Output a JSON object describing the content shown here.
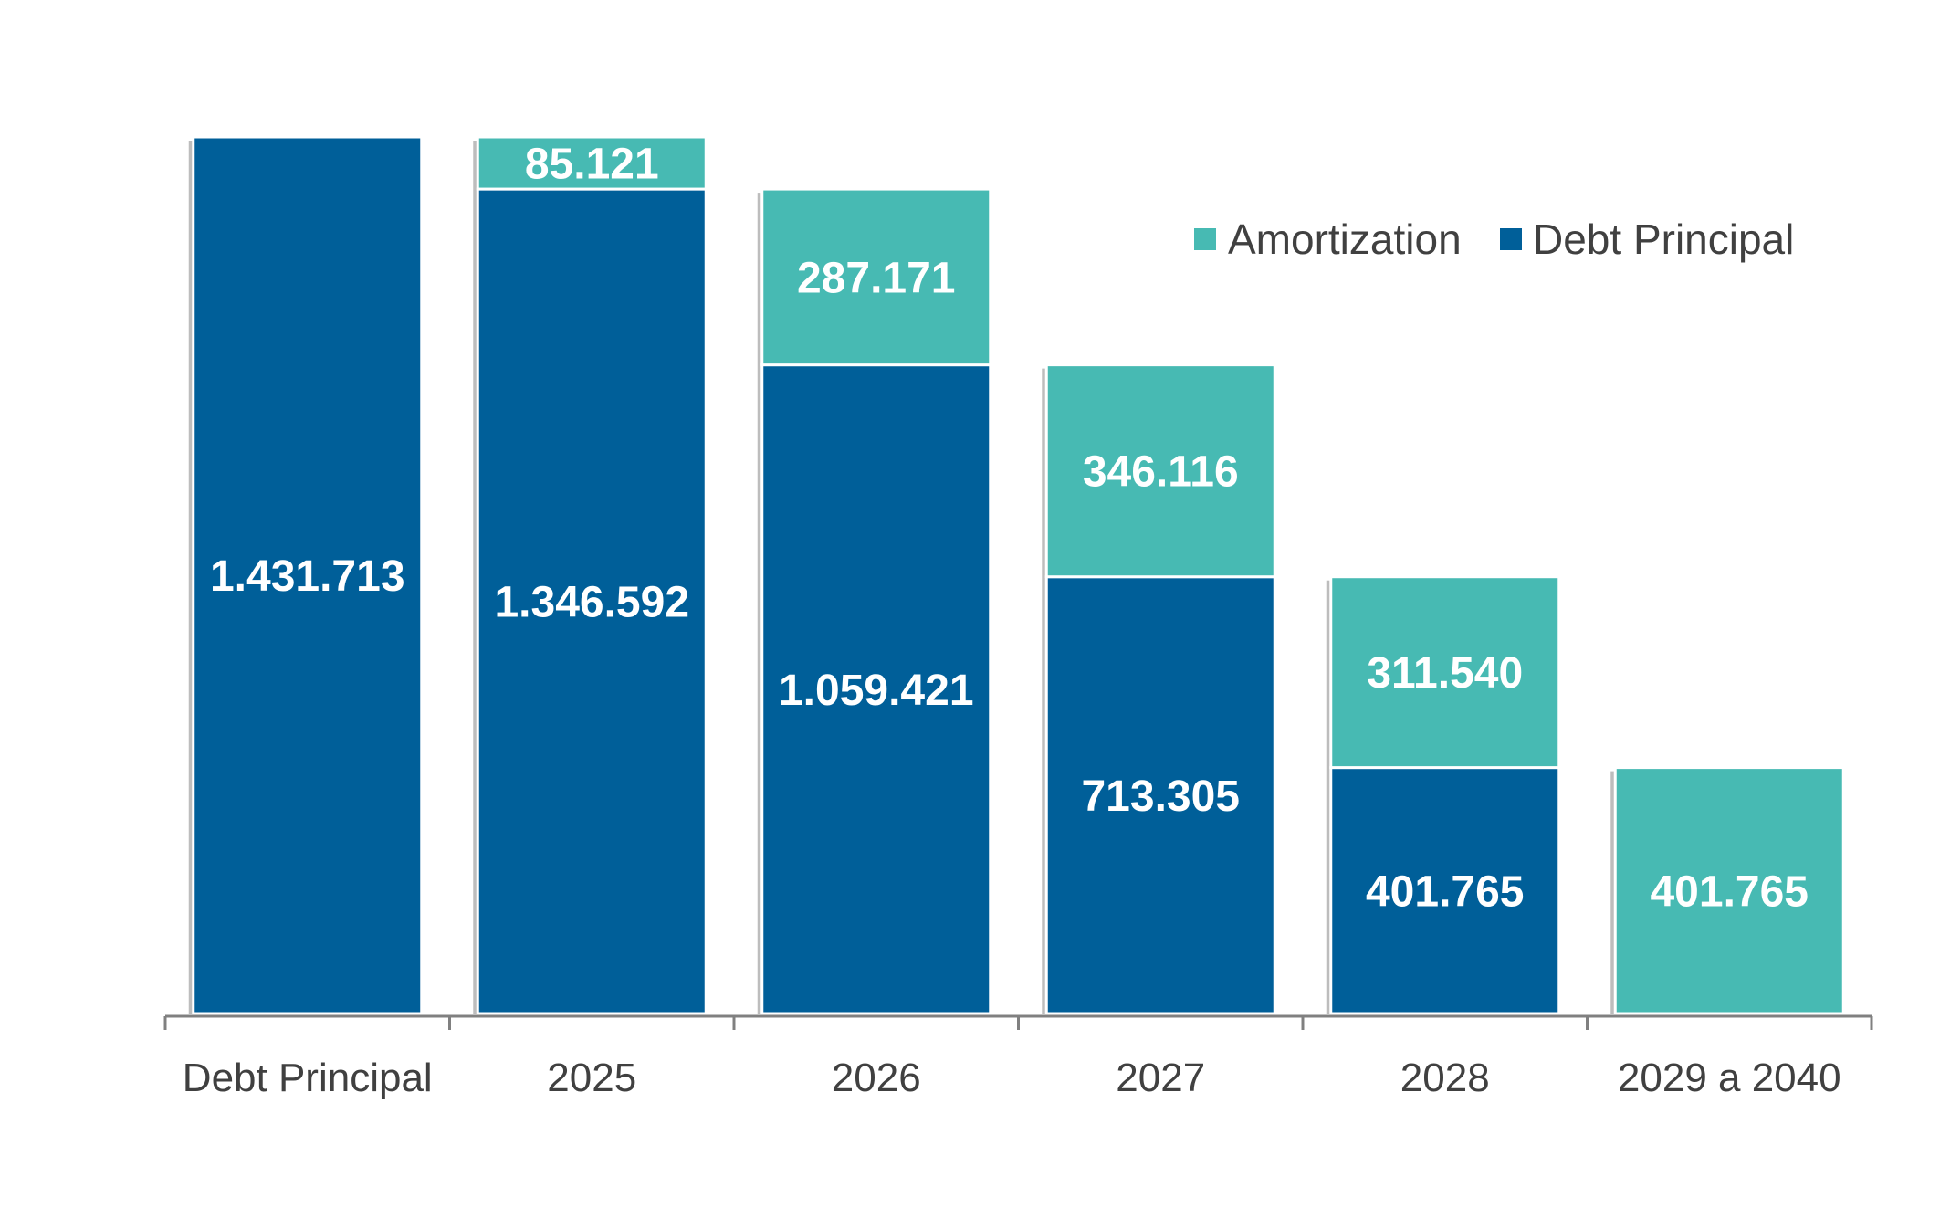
{
  "chart_data": {
    "type": "bar",
    "stacked": true,
    "title": "",
    "xlabel": "",
    "ylabel": "",
    "categories": [
      "Debt Principal",
      "2025",
      "2026",
      "2027",
      "2028",
      "2029 a 2040"
    ],
    "series": [
      {
        "name": "Debt Principal",
        "color": "#005f99",
        "values": [
          1431713,
          1346592,
          1059421,
          713305,
          401765,
          null
        ],
        "labels": [
          "1.431.713",
          "1.346.592",
          "1.059.421",
          "713.305",
          "401.765",
          ""
        ]
      },
      {
        "name": "Amortization",
        "color": "#47bab3",
        "values": [
          null,
          85121,
          287171,
          346116,
          311540,
          401765
        ],
        "labels": [
          "",
          "85.121",
          "287.171",
          "346.116",
          "311.540",
          "401.765"
        ]
      }
    ],
    "ylim": [
      0,
      1431713
    ],
    "grid": false,
    "legend": {
      "position": "top-right",
      "entries": [
        "Amortization",
        "Debt Principal"
      ]
    }
  }
}
